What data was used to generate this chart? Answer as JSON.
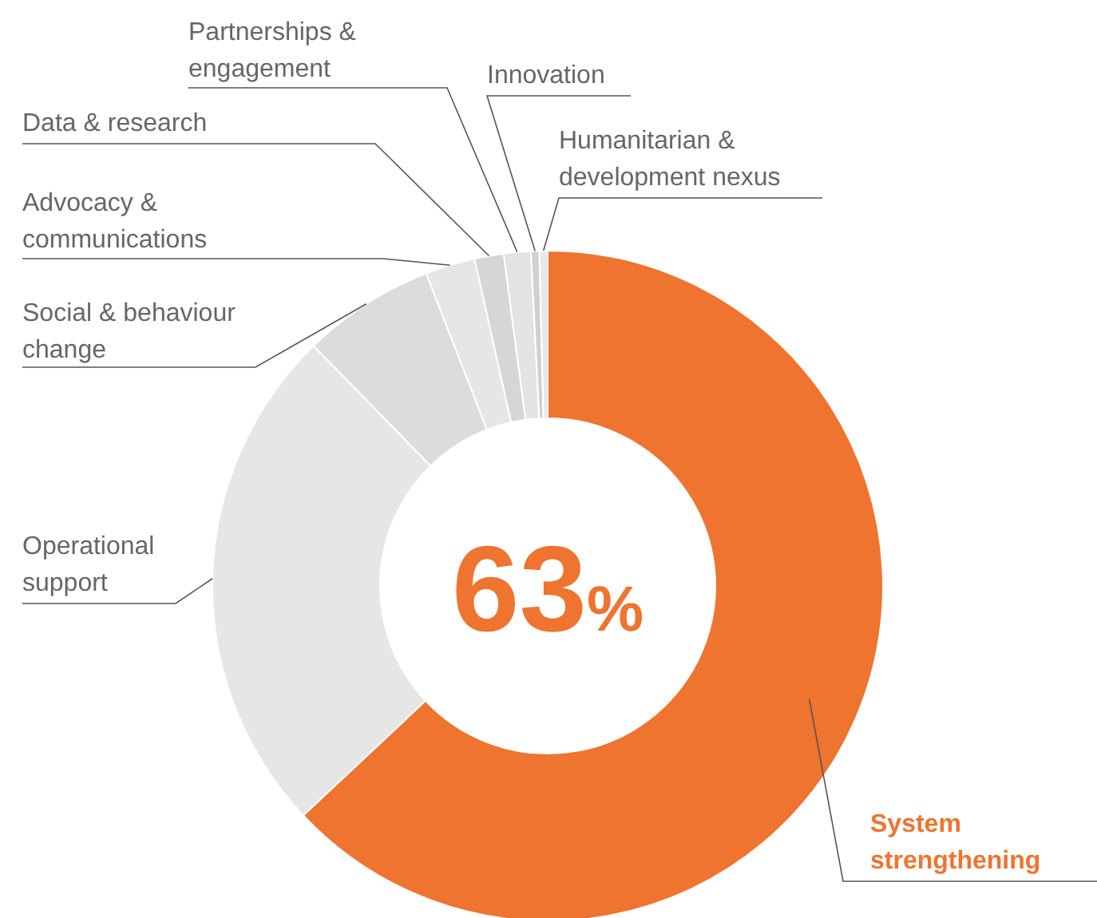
{
  "chart_data": {
    "type": "donut",
    "categories": [
      "System strengthening",
      "Operational support",
      "Social & behaviour change",
      "Advocacy & communications",
      "Data & research",
      "Partnerships & engagement",
      "Innovation",
      "Humanitarian & development nexus"
    ],
    "values": [
      63,
      24.7,
      6.4,
      2.4,
      1.4,
      1.3,
      0.4,
      0.4
    ],
    "colors": [
      "#ee7430",
      "#e6e6e6",
      "#dcdcdc",
      "#e6e6e6",
      "#d6d6d6",
      "#e3e3e3",
      "#d0d0d0",
      "#e8e8e8"
    ],
    "annotations": [
      "63%"
    ]
  }
}
